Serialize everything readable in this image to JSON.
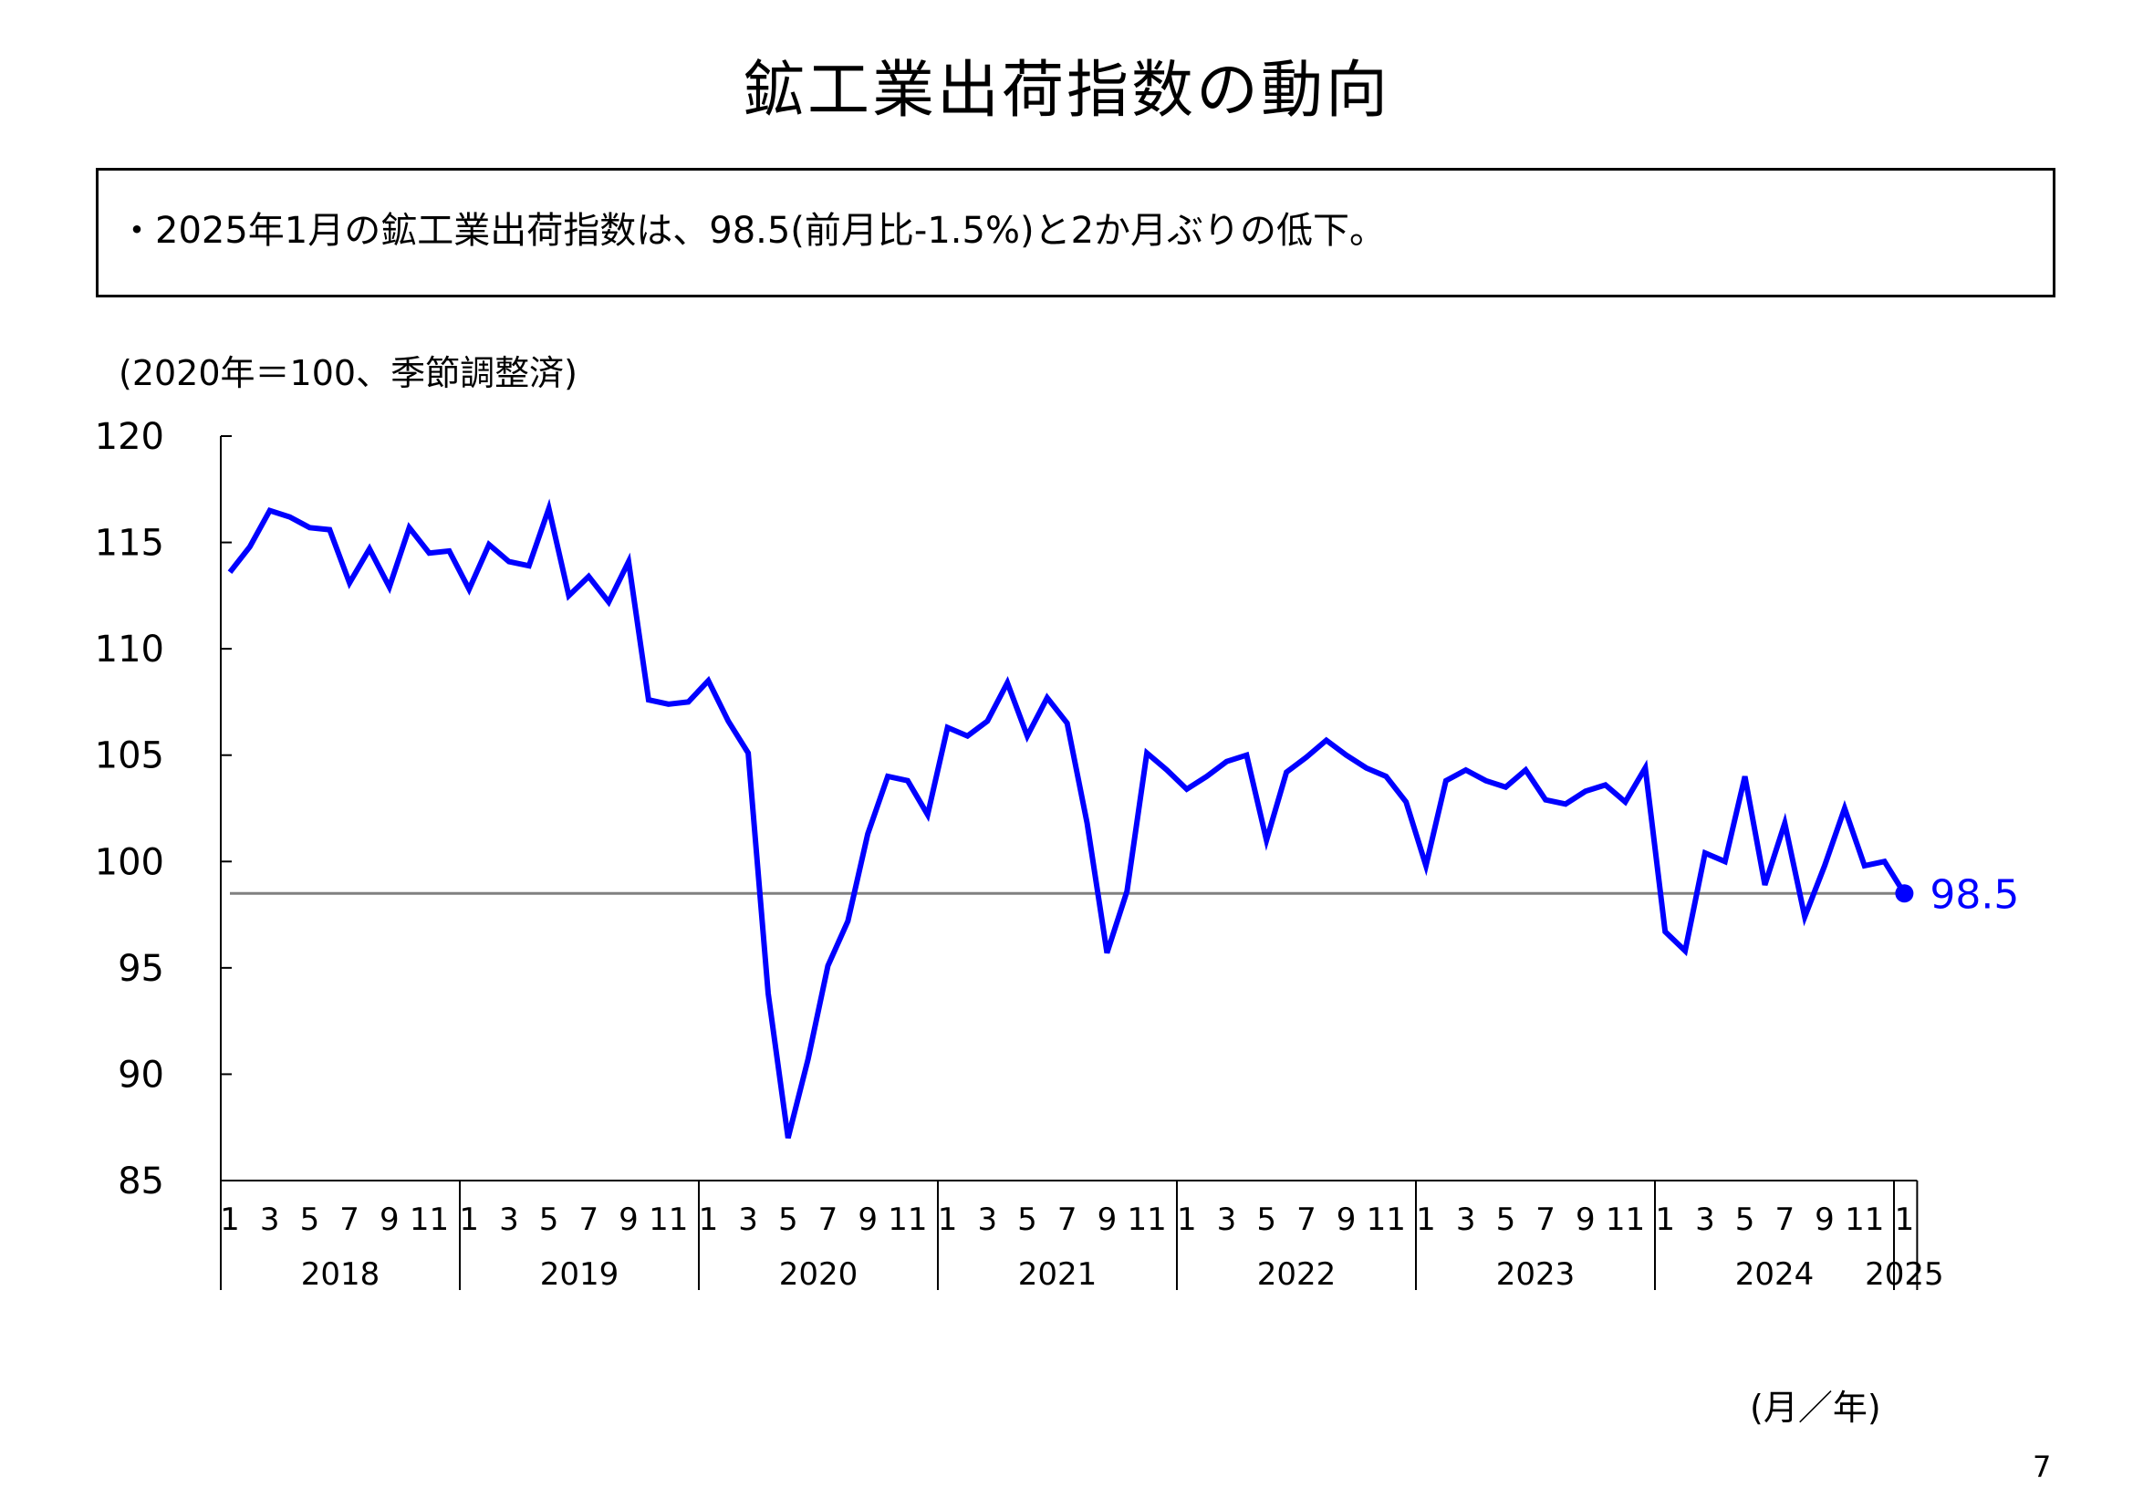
{
  "title": "鉱工業出荷指数の動向",
  "summary": "・2025年1月の鉱工業出荷指数は、98.5(前月比-1.5%)と2か月ぶりの低下。",
  "unit_label": "(2020年＝100、季節調整済)",
  "x_unit_label": "(月／年)",
  "page_number": "7",
  "chart_data": {
    "type": "line",
    "ylim": [
      85,
      120
    ],
    "yticks": [
      "85",
      "90",
      "95",
      "100",
      "105",
      "110",
      "115",
      "120"
    ],
    "month_tick_labels": [
      "1",
      "3",
      "5",
      "7",
      "9",
      "11"
    ],
    "years": [
      "2018",
      "2019",
      "2020",
      "2021",
      "2022",
      "2023",
      "2024",
      "2025"
    ],
    "grid": false,
    "series": [
      {
        "color": "#0000ff",
        "x": [
          "2018-01",
          "2018-02",
          "2018-03",
          "2018-04",
          "2018-05",
          "2018-06",
          "2018-07",
          "2018-08",
          "2018-09",
          "2018-10",
          "2018-11",
          "2018-12",
          "2019-01",
          "2019-02",
          "2019-03",
          "2019-04",
          "2019-05",
          "2019-06",
          "2019-07",
          "2019-08",
          "2019-09",
          "2019-10",
          "2019-11",
          "2019-12",
          "2020-01",
          "2020-02",
          "2020-03",
          "2020-04",
          "2020-05",
          "2020-06",
          "2020-07",
          "2020-08",
          "2020-09",
          "2020-10",
          "2020-11",
          "2020-12",
          "2021-01",
          "2021-02",
          "2021-03",
          "2021-04",
          "2021-05",
          "2021-06",
          "2021-07",
          "2021-08",
          "2021-09",
          "2021-10",
          "2021-11",
          "2021-12",
          "2022-01",
          "2022-02",
          "2022-03",
          "2022-04",
          "2022-05",
          "2022-06",
          "2022-07",
          "2022-08",
          "2022-09",
          "2022-10",
          "2022-11",
          "2022-12",
          "2023-01",
          "2023-02",
          "2023-03",
          "2023-04",
          "2023-05",
          "2023-06",
          "2023-07",
          "2023-08",
          "2023-09",
          "2023-10",
          "2023-11",
          "2023-12",
          "2024-01",
          "2024-02",
          "2024-03",
          "2024-04",
          "2024-05",
          "2024-06",
          "2024-07",
          "2024-08",
          "2024-09",
          "2024-10",
          "2024-11",
          "2024-12",
          "2025-01"
        ],
        "values": [
          113.6,
          114.8,
          116.5,
          116.2,
          115.7,
          115.6,
          113.1,
          114.7,
          112.9,
          115.7,
          114.5,
          114.6,
          112.8,
          114.9,
          114.1,
          113.9,
          116.6,
          112.5,
          113.4,
          112.2,
          114.1,
          107.6,
          107.4,
          107.5,
          108.5,
          106.6,
          105.1,
          93.8,
          87.0,
          90.7,
          95.1,
          97.2,
          101.3,
          104.0,
          103.8,
          102.2,
          106.3,
          105.9,
          106.6,
          108.4,
          105.9,
          107.7,
          106.5,
          101.8,
          95.7,
          98.6,
          105.1,
          104.3,
          103.4,
          104.0,
          104.7,
          105.0,
          101.0,
          104.2,
          104.9,
          105.7,
          105.0,
          104.4,
          104.0,
          102.8,
          99.8,
          103.8,
          104.3,
          103.8,
          103.5,
          104.3,
          102.9,
          102.7,
          103.3,
          103.6,
          102.8,
          104.4,
          96.7,
          95.8,
          100.4,
          100.0,
          104.0,
          98.9,
          101.8,
          97.4,
          99.8,
          102.5,
          99.8,
          100.0,
          98.5
        ]
      }
    ],
    "reference_line": 98.5,
    "last_value_label": "98.5"
  }
}
